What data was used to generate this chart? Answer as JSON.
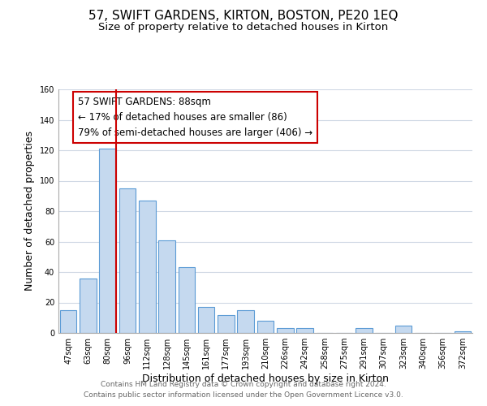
{
  "title": "57, SWIFT GARDENS, KIRTON, BOSTON, PE20 1EQ",
  "subtitle": "Size of property relative to detached houses in Kirton",
  "xlabel": "Distribution of detached houses by size in Kirton",
  "ylabel": "Number of detached properties",
  "categories": [
    "47sqm",
    "63sqm",
    "80sqm",
    "96sqm",
    "112sqm",
    "128sqm",
    "145sqm",
    "161sqm",
    "177sqm",
    "193sqm",
    "210sqm",
    "226sqm",
    "242sqm",
    "258sqm",
    "275sqm",
    "291sqm",
    "307sqm",
    "323sqm",
    "340sqm",
    "356sqm",
    "372sqm"
  ],
  "values": [
    15,
    36,
    121,
    95,
    87,
    61,
    43,
    17,
    12,
    15,
    8,
    3,
    3,
    0,
    0,
    3,
    0,
    5,
    0,
    0,
    1
  ],
  "bar_color": "#c5d9ef",
  "bar_edge_color": "#5b9bd5",
  "redline_index": 2,
  "annotation_text": "57 SWIFT GARDENS: 88sqm\n← 17% of detached houses are smaller (86)\n79% of semi-detached houses are larger (406) →",
  "annotation_box_color": "#ffffff",
  "annotation_box_edge": "#cc0000",
  "ylim": [
    0,
    160
  ],
  "yticks": [
    0,
    20,
    40,
    60,
    80,
    100,
    120,
    140,
    160
  ],
  "redline_color": "#cc0000",
  "grid_color": "#d0d8e4",
  "footer1": "Contains HM Land Registry data © Crown copyright and database right 2024.",
  "footer2": "Contains public sector information licensed under the Open Government Licence v3.0.",
  "title_fontsize": 11,
  "subtitle_fontsize": 9.5,
  "label_fontsize": 9,
  "tick_fontsize": 7,
  "annot_fontsize": 8.5,
  "footer_fontsize": 6.5
}
